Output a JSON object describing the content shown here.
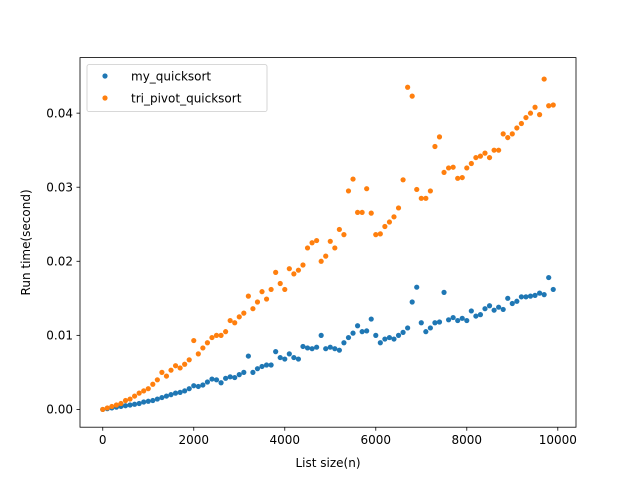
{
  "chart_data": {
    "type": "scatter",
    "title": "",
    "xlabel": "List size(n)",
    "ylabel": "Run time(second)",
    "xlim": [
      -500,
      10400
    ],
    "ylim": [
      -0.0024,
      0.0475
    ],
    "xticks": [
      0,
      2000,
      4000,
      6000,
      8000,
      10000
    ],
    "xtick_labels": [
      "0",
      "2000",
      "4000",
      "6000",
      "8000",
      "10000"
    ],
    "yticks": [
      0.0,
      0.01,
      0.02,
      0.03,
      0.04
    ],
    "ytick_labels": [
      "0.00",
      "0.01",
      "0.02",
      "0.03",
      "0.04"
    ],
    "grid": false,
    "legend_position": "top-left",
    "x": [
      0,
      100,
      200,
      300,
      400,
      500,
      600,
      700,
      800,
      900,
      1000,
      1100,
      1200,
      1300,
      1400,
      1500,
      1600,
      1700,
      1800,
      1900,
      2000,
      2100,
      2200,
      2300,
      2400,
      2500,
      2600,
      2700,
      2800,
      2900,
      3000,
      3100,
      3200,
      3300,
      3400,
      3500,
      3600,
      3700,
      3800,
      3900,
      4000,
      4100,
      4200,
      4300,
      4400,
      4500,
      4600,
      4700,
      4800,
      4900,
      5000,
      5100,
      5200,
      5300,
      5400,
      5500,
      5600,
      5700,
      5800,
      5900,
      6000,
      6100,
      6200,
      6300,
      6400,
      6500,
      6600,
      6700,
      6800,
      6900,
      7000,
      7100,
      7200,
      7300,
      7400,
      7500,
      7600,
      7700,
      7800,
      7900,
      8000,
      8100,
      8200,
      8300,
      8400,
      8500,
      8600,
      8700,
      8800,
      8900,
      9000,
      9100,
      9200,
      9300,
      9400,
      9500,
      9600,
      9700,
      9800,
      9900
    ],
    "series": [
      {
        "name": "my_quicksort",
        "color": "#1f77b4",
        "values": [
          0.0,
          0.0001,
          0.0002,
          0.0003,
          0.0004,
          0.0005,
          0.0006,
          0.0007,
          0.0008,
          0.001,
          0.0011,
          0.0012,
          0.0014,
          0.0016,
          0.0018,
          0.002,
          0.0022,
          0.0023,
          0.0025,
          0.0028,
          0.0032,
          0.0031,
          0.0033,
          0.0037,
          0.0041,
          0.004,
          0.0036,
          0.0042,
          0.0044,
          0.0043,
          0.0047,
          0.005,
          0.0072,
          0.005,
          0.0055,
          0.0058,
          0.006,
          0.006,
          0.0078,
          0.007,
          0.0068,
          0.0075,
          0.007,
          0.0068,
          0.0085,
          0.0083,
          0.0082,
          0.0084,
          0.01,
          0.0082,
          0.0084,
          0.0082,
          0.008,
          0.009,
          0.0097,
          0.0103,
          0.0113,
          0.0105,
          0.0106,
          0.0122,
          0.01,
          0.009,
          0.0095,
          0.0097,
          0.0095,
          0.01,
          0.0104,
          0.011,
          0.0145,
          0.0165,
          0.0117,
          0.0105,
          0.011,
          0.0117,
          0.0118,
          0.0158,
          0.0121,
          0.0124,
          0.012,
          0.0123,
          0.012,
          0.0133,
          0.0126,
          0.0128,
          0.0136,
          0.014,
          0.0134,
          0.0138,
          0.0135,
          0.015,
          0.0143,
          0.0146,
          0.0152,
          0.0152,
          0.0153,
          0.0154,
          0.0157,
          0.0155,
          0.0178,
          0.0162
        ]
      },
      {
        "name": "tri_pivot_quicksort",
        "color": "#ff7f0e",
        "values": [
          0.0,
          0.0002,
          0.0004,
          0.0006,
          0.0008,
          0.0012,
          0.0014,
          0.0018,
          0.0022,
          0.0025,
          0.0028,
          0.0034,
          0.004,
          0.005,
          0.0045,
          0.0053,
          0.0059,
          0.0056,
          0.0061,
          0.0067,
          0.0093,
          0.0075,
          0.0083,
          0.009,
          0.0097,
          0.01,
          0.01,
          0.0105,
          0.012,
          0.0117,
          0.0125,
          0.013,
          0.0153,
          0.0136,
          0.0145,
          0.0159,
          0.0149,
          0.0162,
          0.0185,
          0.017,
          0.0162,
          0.019,
          0.0183,
          0.0188,
          0.0195,
          0.0218,
          0.0225,
          0.0228,
          0.02,
          0.0207,
          0.0227,
          0.0218,
          0.0243,
          0.0236,
          0.0295,
          0.0311,
          0.0266,
          0.0266,
          0.0298,
          0.0265,
          0.0236,
          0.0237,
          0.0247,
          0.0253,
          0.026,
          0.0272,
          0.031,
          0.0435,
          0.0423,
          0.0297,
          0.0285,
          0.0285,
          0.0295,
          0.0355,
          0.0368,
          0.032,
          0.0326,
          0.0327,
          0.0312,
          0.0313,
          0.0326,
          0.0332,
          0.034,
          0.0342,
          0.0346,
          0.034,
          0.035,
          0.035,
          0.0372,
          0.0367,
          0.0372,
          0.038,
          0.0386,
          0.0394,
          0.04,
          0.0408,
          0.0398,
          0.0446,
          0.041,
          0.0411
        ]
      }
    ]
  }
}
